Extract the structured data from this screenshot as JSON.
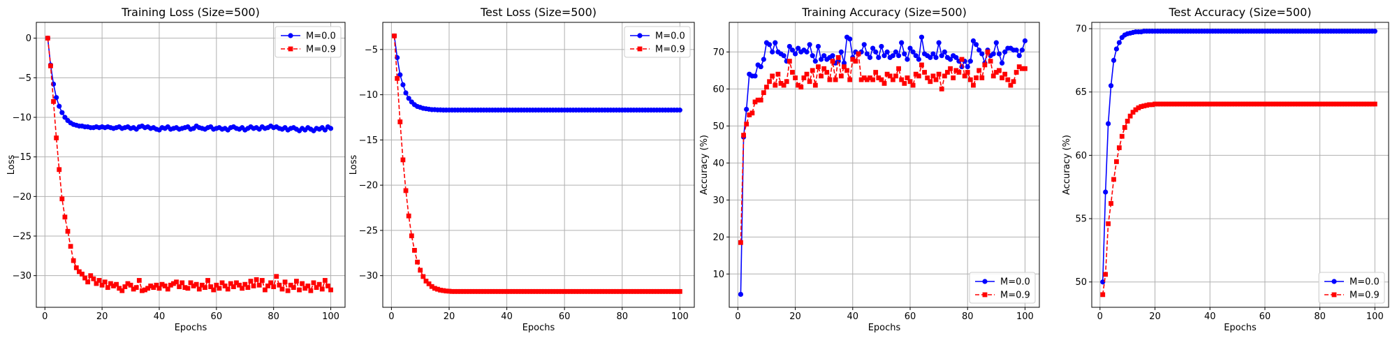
{
  "chart_data": [
    {
      "type": "line",
      "title": "Training Loss (Size=500)",
      "xlabel": "Epochs",
      "ylabel": "Loss",
      "xlim": [
        -3,
        105
      ],
      "ylim": [
        -34,
        2
      ],
      "xticks": [
        0,
        20,
        40,
        60,
        80,
        100
      ],
      "yticks": [
        0,
        -5,
        -10,
        -15,
        -20,
        -25,
        -30
      ],
      "legend": "top-right",
      "grid": true,
      "series": [
        {
          "name": "M=0.0",
          "color": "#0000ff",
          "marker": "circle",
          "line": "solid",
          "x_start": 1,
          "x_step": 1,
          "values": [
            0.0,
            -3.4,
            -5.8,
            -7.5,
            -8.6,
            -9.4,
            -10.0,
            -10.4,
            -10.7,
            -10.9,
            -11.0,
            -11.1,
            -11.1,
            -11.2,
            -11.2,
            -11.3,
            -11.3,
            -11.2,
            -11.3,
            -11.2,
            -11.3,
            -11.2,
            -11.3,
            -11.4,
            -11.3,
            -11.2,
            -11.4,
            -11.3,
            -11.2,
            -11.4,
            -11.3,
            -11.5,
            -11.2,
            -11.1,
            -11.3,
            -11.2,
            -11.4,
            -11.3,
            -11.5,
            -11.6,
            -11.3,
            -11.4,
            -11.2,
            -11.5,
            -11.4,
            -11.3,
            -11.5,
            -11.4,
            -11.3,
            -11.2,
            -11.5,
            -11.4,
            -11.1,
            -11.3,
            -11.4,
            -11.5,
            -11.3,
            -11.2,
            -11.5,
            -11.4,
            -11.3,
            -11.5,
            -11.4,
            -11.6,
            -11.3,
            -11.2,
            -11.4,
            -11.5,
            -11.3,
            -11.6,
            -11.4,
            -11.2,
            -11.4,
            -11.3,
            -11.5,
            -11.2,
            -11.4,
            -11.3,
            -11.1,
            -11.3,
            -11.2,
            -11.4,
            -11.5,
            -11.3,
            -11.6,
            -11.4,
            -11.3,
            -11.5,
            -11.7,
            -11.4,
            -11.6,
            -11.3,
            -11.5,
            -11.7,
            -11.4,
            -11.5,
            -11.3,
            -11.6,
            -11.2,
            -11.4
          ]
        },
        {
          "name": "M=0.9",
          "color": "#ff0000",
          "marker": "square",
          "line": "dashed",
          "x_start": 1,
          "x_step": 1,
          "values": [
            0.0,
            -3.5,
            -8.0,
            -12.6,
            -16.6,
            -20.3,
            -22.6,
            -24.4,
            -26.3,
            -28.1,
            -29.0,
            -29.5,
            -29.8,
            -30.3,
            -30.8,
            -30.0,
            -30.4,
            -31.0,
            -30.6,
            -31.2,
            -30.8,
            -31.5,
            -31.0,
            -31.3,
            -31.1,
            -31.6,
            -31.9,
            -31.4,
            -31.0,
            -31.2,
            -31.7,
            -31.5,
            -30.6,
            -31.9,
            -31.8,
            -31.6,
            -31.3,
            -31.5,
            -31.2,
            -31.6,
            -31.1,
            -31.3,
            -31.7,
            -31.2,
            -31.0,
            -30.8,
            -31.4,
            -30.9,
            -31.5,
            -31.6,
            -30.9,
            -31.3,
            -31.1,
            -31.7,
            -31.2,
            -31.5,
            -30.6,
            -31.4,
            -31.8,
            -31.2,
            -31.6,
            -30.9,
            -31.3,
            -31.7,
            -31.0,
            -31.4,
            -30.9,
            -31.2,
            -31.6,
            -31.1,
            -31.5,
            -30.7,
            -31.3,
            -30.5,
            -31.2,
            -30.6,
            -31.8,
            -31.3,
            -30.9,
            -31.4,
            -30.1,
            -31.2,
            -31.7,
            -30.8,
            -31.9,
            -31.2,
            -31.5,
            -30.7,
            -31.8,
            -31.0,
            -31.6,
            -31.3,
            -31.9,
            -30.9,
            -31.5,
            -31.1,
            -31.7,
            -30.6,
            -31.3,
            -31.8
          ]
        }
      ]
    },
    {
      "type": "line",
      "title": "Test Loss (Size=500)",
      "xlabel": "Epochs",
      "ylabel": "Loss",
      "xlim": [
        -3,
        105
      ],
      "ylim": [
        -33.5,
        -2
      ],
      "xticks": [
        0,
        20,
        40,
        60,
        80,
        100
      ],
      "yticks": [
        -5,
        -10,
        -15,
        -20,
        -25,
        -30
      ],
      "legend": "top-right",
      "grid": true,
      "series": [
        {
          "name": "M=0.0",
          "color": "#0000ff",
          "marker": "circle",
          "line": "solid",
          "x_start": 1,
          "x_step": 1,
          "values": [
            -3.5,
            -5.9,
            -7.8,
            -8.9,
            -9.8,
            -10.4,
            -10.8,
            -11.1,
            -11.3,
            -11.4,
            -11.5,
            -11.55,
            -11.6,
            -11.65,
            -11.65,
            -11.68,
            -11.68,
            -11.7,
            -11.7,
            -11.7,
            -11.7,
            -11.7,
            -11.7,
            -11.7,
            -11.7,
            -11.7,
            -11.7,
            -11.7,
            -11.7,
            -11.7,
            -11.7,
            -11.7,
            -11.7,
            -11.7,
            -11.7,
            -11.7,
            -11.7,
            -11.7,
            -11.7,
            -11.7,
            -11.7,
            -11.7,
            -11.7,
            -11.7,
            -11.7,
            -11.7,
            -11.7,
            -11.7,
            -11.7,
            -11.7,
            -11.7,
            -11.7,
            -11.7,
            -11.7,
            -11.7,
            -11.7,
            -11.7,
            -11.7,
            -11.7,
            -11.7,
            -11.7,
            -11.7,
            -11.7,
            -11.7,
            -11.7,
            -11.7,
            -11.7,
            -11.7,
            -11.7,
            -11.7,
            -11.7,
            -11.7,
            -11.7,
            -11.7,
            -11.7,
            -11.7,
            -11.7,
            -11.7,
            -11.7,
            -11.7,
            -11.7,
            -11.7,
            -11.7,
            -11.7,
            -11.7,
            -11.7,
            -11.7,
            -11.7,
            -11.7,
            -11.7,
            -11.7,
            -11.7,
            -11.7,
            -11.7,
            -11.7,
            -11.7,
            -11.7,
            -11.7,
            -11.7,
            -11.7
          ]
        },
        {
          "name": "M=0.9",
          "color": "#ff0000",
          "marker": "square",
          "line": "dashed",
          "x_start": 1,
          "x_step": 1,
          "values": [
            -3.5,
            -8.2,
            -13.0,
            -17.2,
            -20.6,
            -23.4,
            -25.6,
            -27.2,
            -28.5,
            -29.4,
            -30.1,
            -30.6,
            -30.9,
            -31.2,
            -31.4,
            -31.5,
            -31.6,
            -31.65,
            -31.7,
            -31.72,
            -31.75,
            -31.75,
            -31.75,
            -31.75,
            -31.75,
            -31.75,
            -31.75,
            -31.75,
            -31.75,
            -31.75,
            -31.75,
            -31.75,
            -31.75,
            -31.75,
            -31.75,
            -31.75,
            -31.75,
            -31.75,
            -31.75,
            -31.75,
            -31.75,
            -31.75,
            -31.75,
            -31.75,
            -31.75,
            -31.75,
            -31.75,
            -31.75,
            -31.75,
            -31.75,
            -31.75,
            -31.75,
            -31.75,
            -31.75,
            -31.75,
            -31.75,
            -31.75,
            -31.75,
            -31.75,
            -31.75,
            -31.75,
            -31.75,
            -31.75,
            -31.75,
            -31.75,
            -31.75,
            -31.75,
            -31.75,
            -31.75,
            -31.75,
            -31.75,
            -31.75,
            -31.75,
            -31.75,
            -31.75,
            -31.75,
            -31.75,
            -31.75,
            -31.75,
            -31.75,
            -31.75,
            -31.75,
            -31.75,
            -31.75,
            -31.75,
            -31.75,
            -31.75,
            -31.75,
            -31.75,
            -31.75,
            -31.75,
            -31.75,
            -31.75,
            -31.75,
            -31.75,
            -31.75,
            -31.75,
            -31.75,
            -31.75,
            -31.75
          ]
        }
      ]
    },
    {
      "type": "line",
      "title": "Training Accuracy (Size=500)",
      "xlabel": "Epochs",
      "ylabel": "Accuracy (%)",
      "xlim": [
        -3,
        105
      ],
      "ylim": [
        1,
        78
      ],
      "xticks": [
        0,
        20,
        40,
        60,
        80,
        100
      ],
      "yticks": [
        10,
        20,
        30,
        40,
        50,
        60,
        70
      ],
      "legend": "bottom-right",
      "grid": true,
      "series": [
        {
          "name": "M=0.0",
          "color": "#0000ff",
          "marker": "circle",
          "line": "solid",
          "x_start": 1,
          "x_step": 1,
          "values": [
            4.5,
            47.0,
            54.5,
            64.0,
            63.5,
            63.5,
            66.5,
            66.0,
            68.0,
            72.5,
            72.0,
            70.0,
            72.5,
            70.0,
            69.5,
            69.0,
            67.5,
            71.5,
            70.5,
            69.5,
            71.0,
            70.0,
            70.5,
            70.0,
            72.0,
            69.0,
            67.5,
            71.5,
            68.0,
            69.0,
            68.0,
            68.5,
            69.0,
            67.0,
            67.5,
            70.0,
            67.0,
            74.0,
            73.5,
            68.5,
            70.0,
            69.5,
            70.0,
            72.0,
            69.5,
            68.5,
            71.0,
            70.0,
            68.5,
            71.5,
            69.0,
            70.0,
            68.5,
            69.0,
            70.0,
            69.0,
            72.5,
            69.5,
            68.0,
            71.0,
            70.0,
            69.0,
            68.0,
            74.0,
            69.5,
            69.0,
            68.5,
            69.5,
            68.5,
            72.5,
            69.0,
            70.0,
            68.5,
            68.0,
            69.0,
            68.5,
            67.5,
            66.0,
            67.5,
            66.0,
            67.5,
            73.0,
            72.0,
            70.5,
            69.5,
            67.0,
            70.5,
            69.0,
            69.5,
            72.5,
            69.5,
            67.0,
            70.0,
            71.0,
            71.0,
            70.5,
            70.5,
            69.0,
            70.5,
            73.0
          ]
        },
        {
          "name": "M=0.9",
          "color": "#ff0000",
          "marker": "square",
          "line": "dashed",
          "x_start": 1,
          "x_step": 1,
          "values": [
            18.5,
            47.5,
            50.5,
            53.0,
            53.5,
            56.5,
            57.0,
            57.0,
            59.0,
            60.5,
            62.0,
            63.5,
            61.0,
            64.0,
            61.5,
            61.0,
            62.0,
            67.5,
            64.5,
            63.0,
            61.0,
            60.5,
            63.0,
            64.0,
            62.0,
            65.0,
            61.0,
            66.0,
            63.5,
            65.5,
            64.5,
            62.5,
            67.5,
            62.5,
            68.5,
            63.5,
            66.0,
            65.0,
            62.5,
            68.0,
            67.5,
            69.5,
            62.5,
            63.0,
            62.5,
            63.0,
            62.5,
            64.5,
            63.0,
            62.5,
            61.5,
            64.0,
            63.5,
            62.5,
            63.5,
            65.5,
            62.5,
            61.5,
            63.0,
            62.0,
            61.0,
            64.0,
            63.5,
            66.5,
            64.5,
            63.0,
            62.0,
            63.5,
            62.5,
            64.0,
            60.0,
            63.5,
            64.5,
            65.5,
            63.0,
            65.0,
            64.5,
            68.0,
            63.5,
            64.5,
            62.5,
            61.0,
            63.0,
            65.0,
            63.0,
            66.5,
            70.0,
            67.5,
            63.5,
            64.5,
            65.0,
            63.0,
            64.0,
            62.5,
            61.0,
            62.0,
            64.5,
            66.0,
            65.5,
            65.5
          ]
        }
      ]
    },
    {
      "type": "line",
      "title": "Test Accuracy (Size=500)",
      "xlabel": "Epochs",
      "ylabel": "Accuracy (%)",
      "xlim": [
        -3,
        105
      ],
      "ylim": [
        48,
        70.5
      ],
      "xticks": [
        0,
        20,
        40,
        60,
        80,
        100
      ],
      "yticks": [
        50,
        55,
        60,
        65,
        70
      ],
      "legend": "bottom-right",
      "grid": true,
      "series": [
        {
          "name": "M=0.0",
          "color": "#0000ff",
          "marker": "circle",
          "line": "solid",
          "x_start": 1,
          "x_step": 1,
          "values": [
            50.0,
            57.1,
            62.5,
            65.5,
            67.5,
            68.4,
            68.9,
            69.3,
            69.5,
            69.6,
            69.65,
            69.7,
            69.75,
            69.75,
            69.75,
            69.8,
            69.8,
            69.8,
            69.8,
            69.8,
            69.8,
            69.8,
            69.8,
            69.8,
            69.8,
            69.8,
            69.8,
            69.8,
            69.8,
            69.8,
            69.8,
            69.8,
            69.8,
            69.8,
            69.8,
            69.8,
            69.8,
            69.8,
            69.8,
            69.8,
            69.8,
            69.8,
            69.8,
            69.8,
            69.8,
            69.8,
            69.8,
            69.8,
            69.8,
            69.8,
            69.8,
            69.8,
            69.8,
            69.8,
            69.8,
            69.8,
            69.8,
            69.8,
            69.8,
            69.8,
            69.8,
            69.8,
            69.8,
            69.8,
            69.8,
            69.8,
            69.8,
            69.8,
            69.8,
            69.8,
            69.8,
            69.8,
            69.8,
            69.8,
            69.8,
            69.8,
            69.8,
            69.8,
            69.8,
            69.8,
            69.8,
            69.8,
            69.8,
            69.8,
            69.8,
            69.8,
            69.8,
            69.8,
            69.8,
            69.8,
            69.8,
            69.8,
            69.8,
            69.8,
            69.8,
            69.8,
            69.8,
            69.8,
            69.8,
            69.8
          ]
        },
        {
          "name": "M=0.9",
          "color": "#ff0000",
          "marker": "square",
          "line": "dashed",
          "x_start": 1,
          "x_step": 1,
          "values": [
            49.0,
            50.6,
            54.6,
            56.2,
            58.1,
            59.5,
            60.6,
            61.5,
            62.2,
            62.7,
            63.1,
            63.4,
            63.6,
            63.75,
            63.85,
            63.9,
            63.95,
            64.0,
            64.0,
            64.05,
            64.05,
            64.05,
            64.05,
            64.05,
            64.05,
            64.05,
            64.05,
            64.05,
            64.05,
            64.05,
            64.05,
            64.05,
            64.05,
            64.05,
            64.05,
            64.05,
            64.05,
            64.05,
            64.05,
            64.05,
            64.05,
            64.05,
            64.05,
            64.05,
            64.05,
            64.05,
            64.05,
            64.05,
            64.05,
            64.05,
            64.05,
            64.05,
            64.05,
            64.05,
            64.05,
            64.05,
            64.05,
            64.05,
            64.05,
            64.05,
            64.05,
            64.05,
            64.05,
            64.05,
            64.05,
            64.05,
            64.05,
            64.05,
            64.05,
            64.05,
            64.05,
            64.05,
            64.05,
            64.05,
            64.05,
            64.05,
            64.05,
            64.05,
            64.05,
            64.05,
            64.05,
            64.05,
            64.05,
            64.05,
            64.05,
            64.05,
            64.05,
            64.05,
            64.05,
            64.05,
            64.05,
            64.05,
            64.05,
            64.05,
            64.05,
            64.05,
            64.05,
            64.05,
            64.05,
            64.05
          ]
        }
      ]
    }
  ]
}
